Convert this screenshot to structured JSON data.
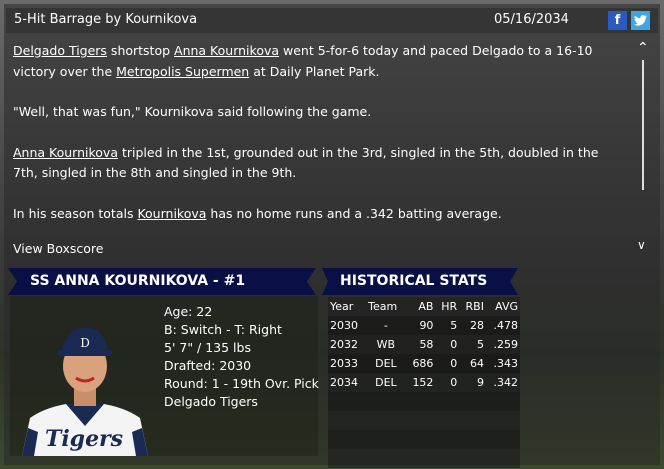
{
  "header": {
    "title": "5-Hit Barrage by Kournikova",
    "date": "05/16/2034",
    "facebook": "f",
    "twitter": "twitter-bird-icon"
  },
  "article": {
    "p1": {
      "s1": "Delgado Tigers",
      "s2": " shortstop ",
      "s3": "Anna Kournikova",
      "s4": " went 5-for-6 today and paced Delgado to a 16-10 victory over the ",
      "s5": "Metropolis Supermen",
      "s6": " at Daily Planet Park."
    },
    "p2": "\"Well, that was fun,\" Kournikova said following the game.",
    "p3": {
      "s1": "Anna Kournikova",
      "s2": " tripled in the 1st, grounded out in the 3rd, singled in the 5th, doubled in the 7th, singled in the 8th and singled in the 9th."
    },
    "p4": {
      "s1": "In his season totals ",
      "s2": "Kournikova",
      "s3": " has no home runs and a .342 batting average."
    },
    "view_boxscore": "View Boxscore"
  },
  "player": {
    "banner": "SS ANNA KOURNIKOVA - #1",
    "age": "Age: 22",
    "bats_throws": "B: Switch - T: Right",
    "height_weight": "5' 7\" / 135 lbs",
    "drafted": "Drafted: 2030",
    "round": "Round: 1 - 19th Ovr. Pick",
    "team": "Delgado Tigers",
    "cap_logo": "D",
    "jersey": "Tigers"
  },
  "stats": {
    "banner": "HISTORICAL STATS",
    "headers": [
      "Year",
      "Team",
      "AB",
      "HR",
      "RBI",
      "AVG"
    ],
    "rows": [
      [
        "2030",
        "-",
        "90",
        "5",
        "28",
        ".478"
      ],
      [
        "2032",
        "WB",
        "58",
        "0",
        "5",
        ".259"
      ],
      [
        "2033",
        "DEL",
        "686",
        "0",
        "64",
        ".343"
      ],
      [
        "2034",
        "DEL",
        "152",
        "0",
        "9",
        ".342"
      ]
    ]
  },
  "colors": {
    "banner": "#0a0f45",
    "facebook": "#2a5cc0",
    "twitter": "#3fa6e6"
  }
}
